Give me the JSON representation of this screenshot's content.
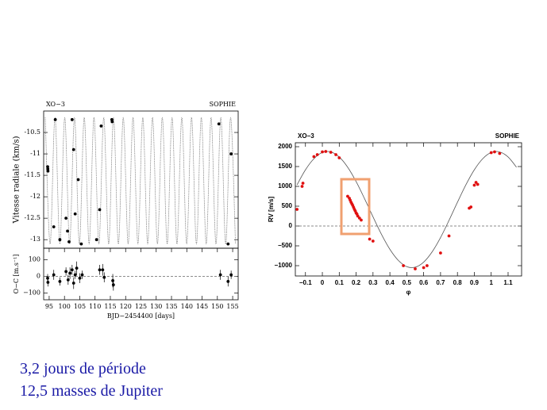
{
  "chart_data": [
    {
      "type": "scatter",
      "title_left": "XO−3",
      "title_right": "SOPHIE",
      "ylabel": "Vitesse radiale (km/s)",
      "xlim": [
        93.2,
        156.8
      ],
      "ylim": [
        -13.2,
        -10.0
      ],
      "yticks": [
        -10.5,
        -11,
        -11.5,
        -12,
        -12.5,
        -13
      ],
      "series": [
        {
          "style": "line",
          "color": "#777777",
          "x": [
            93.71,
            95.31,
            96.9,
            98.5,
            100.09,
            101.69,
            103.28,
            104.88,
            106.47,
            108.07,
            109.66,
            111.26,
            112.85,
            114.45,
            116.04,
            117.64,
            119.23,
            120.83,
            122.42,
            124.02,
            125.61,
            127.21,
            128.8,
            130.4,
            131.99,
            133.59,
            135.18,
            136.78,
            138.37,
            139.97,
            141.56,
            143.16,
            144.75,
            146.35,
            147.94,
            149.54,
            151.13,
            152.73,
            154.32,
            155.92
          ],
          "values": [
            -10.15,
            -13.1,
            -10.15,
            -13.1,
            -10.15,
            -13.1,
            -10.15,
            -13.1,
            -10.15,
            -13.1,
            -10.15,
            -13.1,
            -10.15,
            -13.1,
            -10.15,
            -13.1,
            -10.15,
            -13.1,
            -10.15,
            -13.1,
            -10.15,
            -13.1,
            -10.15,
            -13.1,
            -10.15,
            -13.1,
            -10.15,
            -13.1,
            -10.15,
            -13.1,
            -10.15,
            -13.1,
            -10.15,
            -13.1,
            -10.15,
            -13.1,
            -10.15,
            -13.1,
            -10.15,
            -13.1
          ]
        },
        {
          "style": "points",
          "color": "#000000",
          "x": [
            94.5,
            94.55,
            94.6,
            96.5,
            97,
            98.5,
            100.5,
            101,
            101.5,
            102.5,
            103,
            103.5,
            104.5,
            105.5,
            110.5,
            111.5,
            112,
            115.5,
            115.6,
            150.5,
            153.5,
            154.5
          ],
          "values": [
            -11.3,
            -11.35,
            -11.4,
            -12.7,
            -10.2,
            -13.0,
            -12.5,
            -12.8,
            -13.05,
            -10.2,
            -10.9,
            -12.4,
            -11.6,
            -13.1,
            -13.0,
            -12.3,
            -10.35,
            -10.2,
            -10.25,
            -10.3,
            -13.1,
            -11.0
          ]
        }
      ]
    },
    {
      "type": "scatter",
      "ylabel": "O−C [m.s⁻¹]",
      "xlabel": "BJD−2454400 [days]",
      "xlim": [
        93.2,
        156.8
      ],
      "ylim": [
        -140,
        170
      ],
      "xticks": [
        95,
        100,
        105,
        110,
        115,
        120,
        125,
        130,
        135,
        140,
        145,
        150,
        155
      ],
      "yticks": [
        {
          "value": -100,
          "label": "−100"
        },
        0,
        100
      ],
      "reference_line": 0,
      "series": [
        {
          "style": "points",
          "color": "#000000",
          "x": [
            94.5,
            94.6,
            96.5,
            98.5,
            100.5,
            101.2,
            101.8,
            102.5,
            103,
            103.5,
            104,
            105,
            105.8,
            111.5,
            112.5,
            113,
            115.8,
            116,
            151,
            153.5,
            154.5
          ],
          "values": [
            -10,
            -35,
            10,
            -30,
            30,
            -20,
            20,
            40,
            -40,
            10,
            50,
            -10,
            10,
            40,
            40,
            -5,
            -25,
            -50,
            10,
            -30,
            10
          ],
          "errors": [
            25,
            25,
            30,
            25,
            25,
            30,
            35,
            30,
            35,
            25,
            40,
            30,
            25,
            30,
            35,
            30,
            40,
            35,
            30,
            30,
            25
          ]
        }
      ]
    },
    {
      "type": "scatter",
      "title_left": "XO−3",
      "title_right": "SOPHIE",
      "ylabel": "RV [m/s]",
      "xlabel": "φ",
      "xlim": [
        -0.16,
        1.18
      ],
      "ylim": [
        -1260,
        2100
      ],
      "xticks": [
        {
          "value": -0.1,
          "label": "−0.1"
        },
        0,
        0.1,
        0.2,
        0.3,
        0.4,
        0.5,
        0.6,
        0.7,
        0.8,
        0.9,
        1,
        1.1
      ],
      "yticks": [
        {
          "value": -1000,
          "label": "−1000"
        },
        {
          "value": -500,
          "label": "−500"
        },
        0,
        500,
        1000,
        1500,
        2000
      ],
      "reference_line": 0,
      "series": [
        {
          "style": "line",
          "color": "#555555",
          "x": [
            -0.15,
            -0.1,
            -0.05,
            0,
            0.05,
            0.1,
            0.15,
            0.2,
            0.25,
            0.3,
            0.35,
            0.4,
            0.45,
            0.5,
            0.55,
            0.6,
            0.65,
            0.7,
            0.75,
            0.8,
            0.85,
            0.9,
            0.95,
            1,
            1.05,
            1.1,
            1.15
          ],
          "values": [
            1039,
            1418,
            1698,
            1854,
            1868,
            1741,
            1483,
            1121,
            689,
            232,
            -209,
            -588,
            -868,
            -1024,
            -1038,
            -911,
            -653,
            -291,
            141,
            598,
            1039,
            1418,
            1698,
            1854,
            1868,
            1741,
            1483
          ]
        },
        {
          "style": "points",
          "color": "#e01010",
          "x": [
            -0.15,
            -0.12,
            -0.115,
            -0.05,
            -0.03,
            0,
            0.02,
            0.05,
            0.08,
            0.1,
            0.15,
            0.16,
            0.165,
            0.17,
            0.175,
            0.18,
            0.185,
            0.19,
            0.195,
            0.2,
            0.205,
            0.21,
            0.22,
            0.23,
            0.28,
            0.3,
            0.48,
            0.55,
            0.6,
            0.62,
            0.7,
            0.75,
            0.87,
            0.88,
            0.9,
            0.91,
            0.92,
            1,
            1.02,
            1.05
          ],
          "values": [
            420,
            1000,
            1080,
            1750,
            1800,
            1870,
            1880,
            1860,
            1800,
            1720,
            750,
            700,
            650,
            600,
            560,
            520,
            470,
            420,
            380,
            330,
            300,
            250,
            200,
            150,
            -330,
            -380,
            -1000,
            -1080,
            -1050,
            -1000,
            -680,
            -250,
            450,
            480,
            1030,
            1100,
            1050,
            1850,
            1870,
            1830
          ]
        }
      ]
    }
  ],
  "text_lines": [
    "3,2 jours de période",
    "12,5 masses de Jupiter"
  ]
}
